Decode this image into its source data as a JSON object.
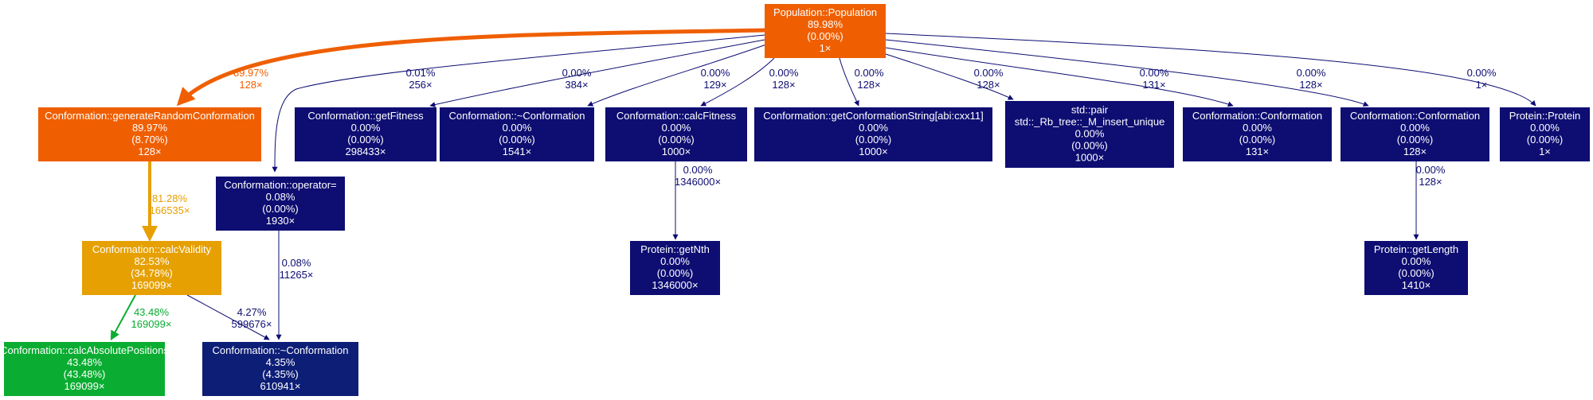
{
  "nodes": [
    {
      "id": "population",
      "lines": [
        "Population::Population",
        "89.98%",
        "(0.00%)",
        "1×"
      ],
      "color": "#ef5f02"
    },
    {
      "id": "generate-random",
      "lines": [
        "Conformation::generateRandomConformation",
        "89.97%",
        "(8.70%)",
        "128×"
      ],
      "color": "#ef5f02"
    },
    {
      "id": "get-fitness",
      "lines": [
        "Conformation::getFitness",
        "0.00%",
        "(0.00%)",
        "298433×"
      ],
      "color": "#0d0d72"
    },
    {
      "id": "destructor-top",
      "lines": [
        "Conformation::~Conformation",
        "0.00%",
        "(0.00%)",
        "1541×"
      ],
      "color": "#0d0d72"
    },
    {
      "id": "calc-fitness",
      "lines": [
        "Conformation::calcFitness",
        "0.00%",
        "(0.00%)",
        "1000×"
      ],
      "color": "#0d0d72"
    },
    {
      "id": "get-conf-string",
      "lines": [
        "Conformation::getConformationString[abi:cxx11]",
        "0.00%",
        "(0.00%)",
        "1000×"
      ],
      "color": "#0d0d72"
    },
    {
      "id": "rb-tree-insert",
      "lines": [
        "std::pair",
        "std::_Rb_tree::_M_insert_unique",
        "0.00%",
        "(0.00%)",
        "1000×"
      ],
      "color": "#0d0d72"
    },
    {
      "id": "ctor-131",
      "lines": [
        "Conformation::Conformation",
        "0.00%",
        "(0.00%)",
        "131×"
      ],
      "color": "#0d0d72"
    },
    {
      "id": "ctor-128",
      "lines": [
        "Conformation::Conformation",
        "0.00%",
        "(0.00%)",
        "128×"
      ],
      "color": "#0d0d72"
    },
    {
      "id": "protein-ctor",
      "lines": [
        "Protein::Protein",
        "0.00%",
        "(0.00%)",
        "1×"
      ],
      "color": "#0d0d72"
    },
    {
      "id": "operator-assign",
      "lines": [
        "Conformation::operator=",
        "0.08%",
        "(0.00%)",
        "1930×"
      ],
      "color": "#0d0d72"
    },
    {
      "id": "calc-validity",
      "lines": [
        "Conformation::calcValidity",
        "82.53%",
        "(34.78%)",
        "169099×"
      ],
      "color": "#e6a002"
    },
    {
      "id": "get-nth",
      "lines": [
        "Protein::getNth",
        "0.00%",
        "(0.00%)",
        "1346000×"
      ],
      "color": "#0d0d72"
    },
    {
      "id": "get-length",
      "lines": [
        "Protein::getLength",
        "0.00%",
        "(0.00%)",
        "1410×"
      ],
      "color": "#0d0d72"
    },
    {
      "id": "calc-abs-positions",
      "lines": [
        "Conformation::calcAbsolutePositions",
        "43.48%",
        "(43.48%)",
        "169099×"
      ],
      "color": "#0aad31"
    },
    {
      "id": "destructor-bottom",
      "lines": [
        "Conformation::~Conformation",
        "4.35%",
        "(4.35%)",
        "610941×"
      ],
      "color": "#0d1e76"
    }
  ],
  "edges": [
    {
      "from": "population",
      "to": "generate-random",
      "pct": "89.97%",
      "calls": "128×",
      "color": "#ef5f02"
    },
    {
      "from": "population",
      "to": "operator-assign",
      "pct": "0.01%",
      "calls": "256×",
      "color": "#0d0d72"
    },
    {
      "from": "population",
      "to": "get-fitness",
      "pct": "0.00%",
      "calls": "384×",
      "color": "#0d0d72"
    },
    {
      "from": "population",
      "to": "destructor-top",
      "pct": "0.00%",
      "calls": "129×",
      "color": "#0d0d72"
    },
    {
      "from": "population",
      "to": "calc-fitness",
      "pct": "0.00%",
      "calls": "128×",
      "color": "#0d0d72"
    },
    {
      "from": "population",
      "to": "get-conf-string",
      "pct": "0.00%",
      "calls": "128×",
      "color": "#0d0d72"
    },
    {
      "from": "population",
      "to": "rb-tree-insert",
      "pct": "0.00%",
      "calls": "128×",
      "color": "#0d0d72"
    },
    {
      "from": "population",
      "to": "ctor-131",
      "pct": "0.00%",
      "calls": "131×",
      "color": "#0d0d72"
    },
    {
      "from": "population",
      "to": "ctor-128",
      "pct": "0.00%",
      "calls": "128×",
      "color": "#0d0d72"
    },
    {
      "from": "population",
      "to": "protein-ctor",
      "pct": "0.00%",
      "calls": "1×",
      "color": "#0d0d72"
    },
    {
      "from": "generate-random",
      "to": "calc-validity",
      "pct": "81.28%",
      "calls": "166535×",
      "color": "#e6a002"
    },
    {
      "from": "calc-fitness",
      "to": "get-nth",
      "pct": "0.00%",
      "calls": "1346000×",
      "color": "#0d0d72"
    },
    {
      "from": "ctor-128",
      "to": "get-length",
      "pct": "0.00%",
      "calls": "128×",
      "color": "#0d0d72"
    },
    {
      "from": "calc-validity",
      "to": "calc-abs-positions",
      "pct": "43.48%",
      "calls": "169099×",
      "color": "#0aad31"
    },
    {
      "from": "calc-validity",
      "to": "destructor-bottom",
      "pct": "4.27%",
      "calls": "599676×",
      "color": "#0d0d72"
    },
    {
      "from": "operator-assign",
      "to": "destructor-bottom",
      "pct": "0.08%",
      "calls": "11265×",
      "color": "#0d0d72"
    }
  ]
}
